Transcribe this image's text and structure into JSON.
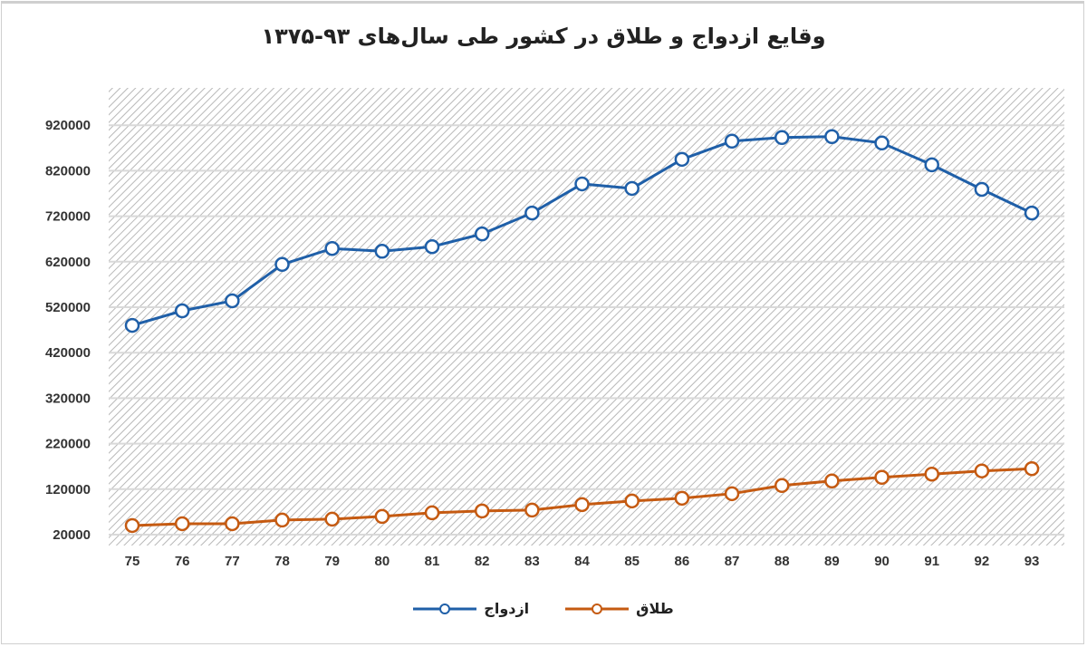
{
  "chart_data": {
    "type": "line",
    "title": "وقایع ازدواج و طلاق در کشور طی سال‌های ۹۳-۱۳۷۵",
    "xlabel": "",
    "ylabel": "",
    "categories": [
      "75",
      "76",
      "77",
      "78",
      "79",
      "80",
      "81",
      "82",
      "83",
      "84",
      "85",
      "86",
      "87",
      "88",
      "89",
      "90",
      "91",
      "92",
      "93"
    ],
    "yticks": [
      "20000",
      "120000",
      "220000",
      "320000",
      "420000",
      "520000",
      "620000",
      "720000",
      "820000",
      "920000"
    ],
    "ylim": [
      20000,
      1010000
    ],
    "grid": true,
    "legend_position": "bottom",
    "series": [
      {
        "name": "ازدواج",
        "color": "#1f5fa8",
        "values": [
          480000,
          512000,
          534000,
          614000,
          649000,
          643000,
          653000,
          681000,
          727000,
          791000,
          781000,
          845000,
          885000,
          893000,
          895000,
          881000,
          833000,
          779000,
          727000
        ]
      },
      {
        "name": "طلاق",
        "color": "#c55a11",
        "values": [
          40000,
          44000,
          44000,
          52000,
          54000,
          60000,
          68000,
          72000,
          74000,
          86000,
          94000,
          100000,
          110000,
          128000,
          138000,
          146000,
          153000,
          160000,
          165000
        ]
      }
    ]
  }
}
